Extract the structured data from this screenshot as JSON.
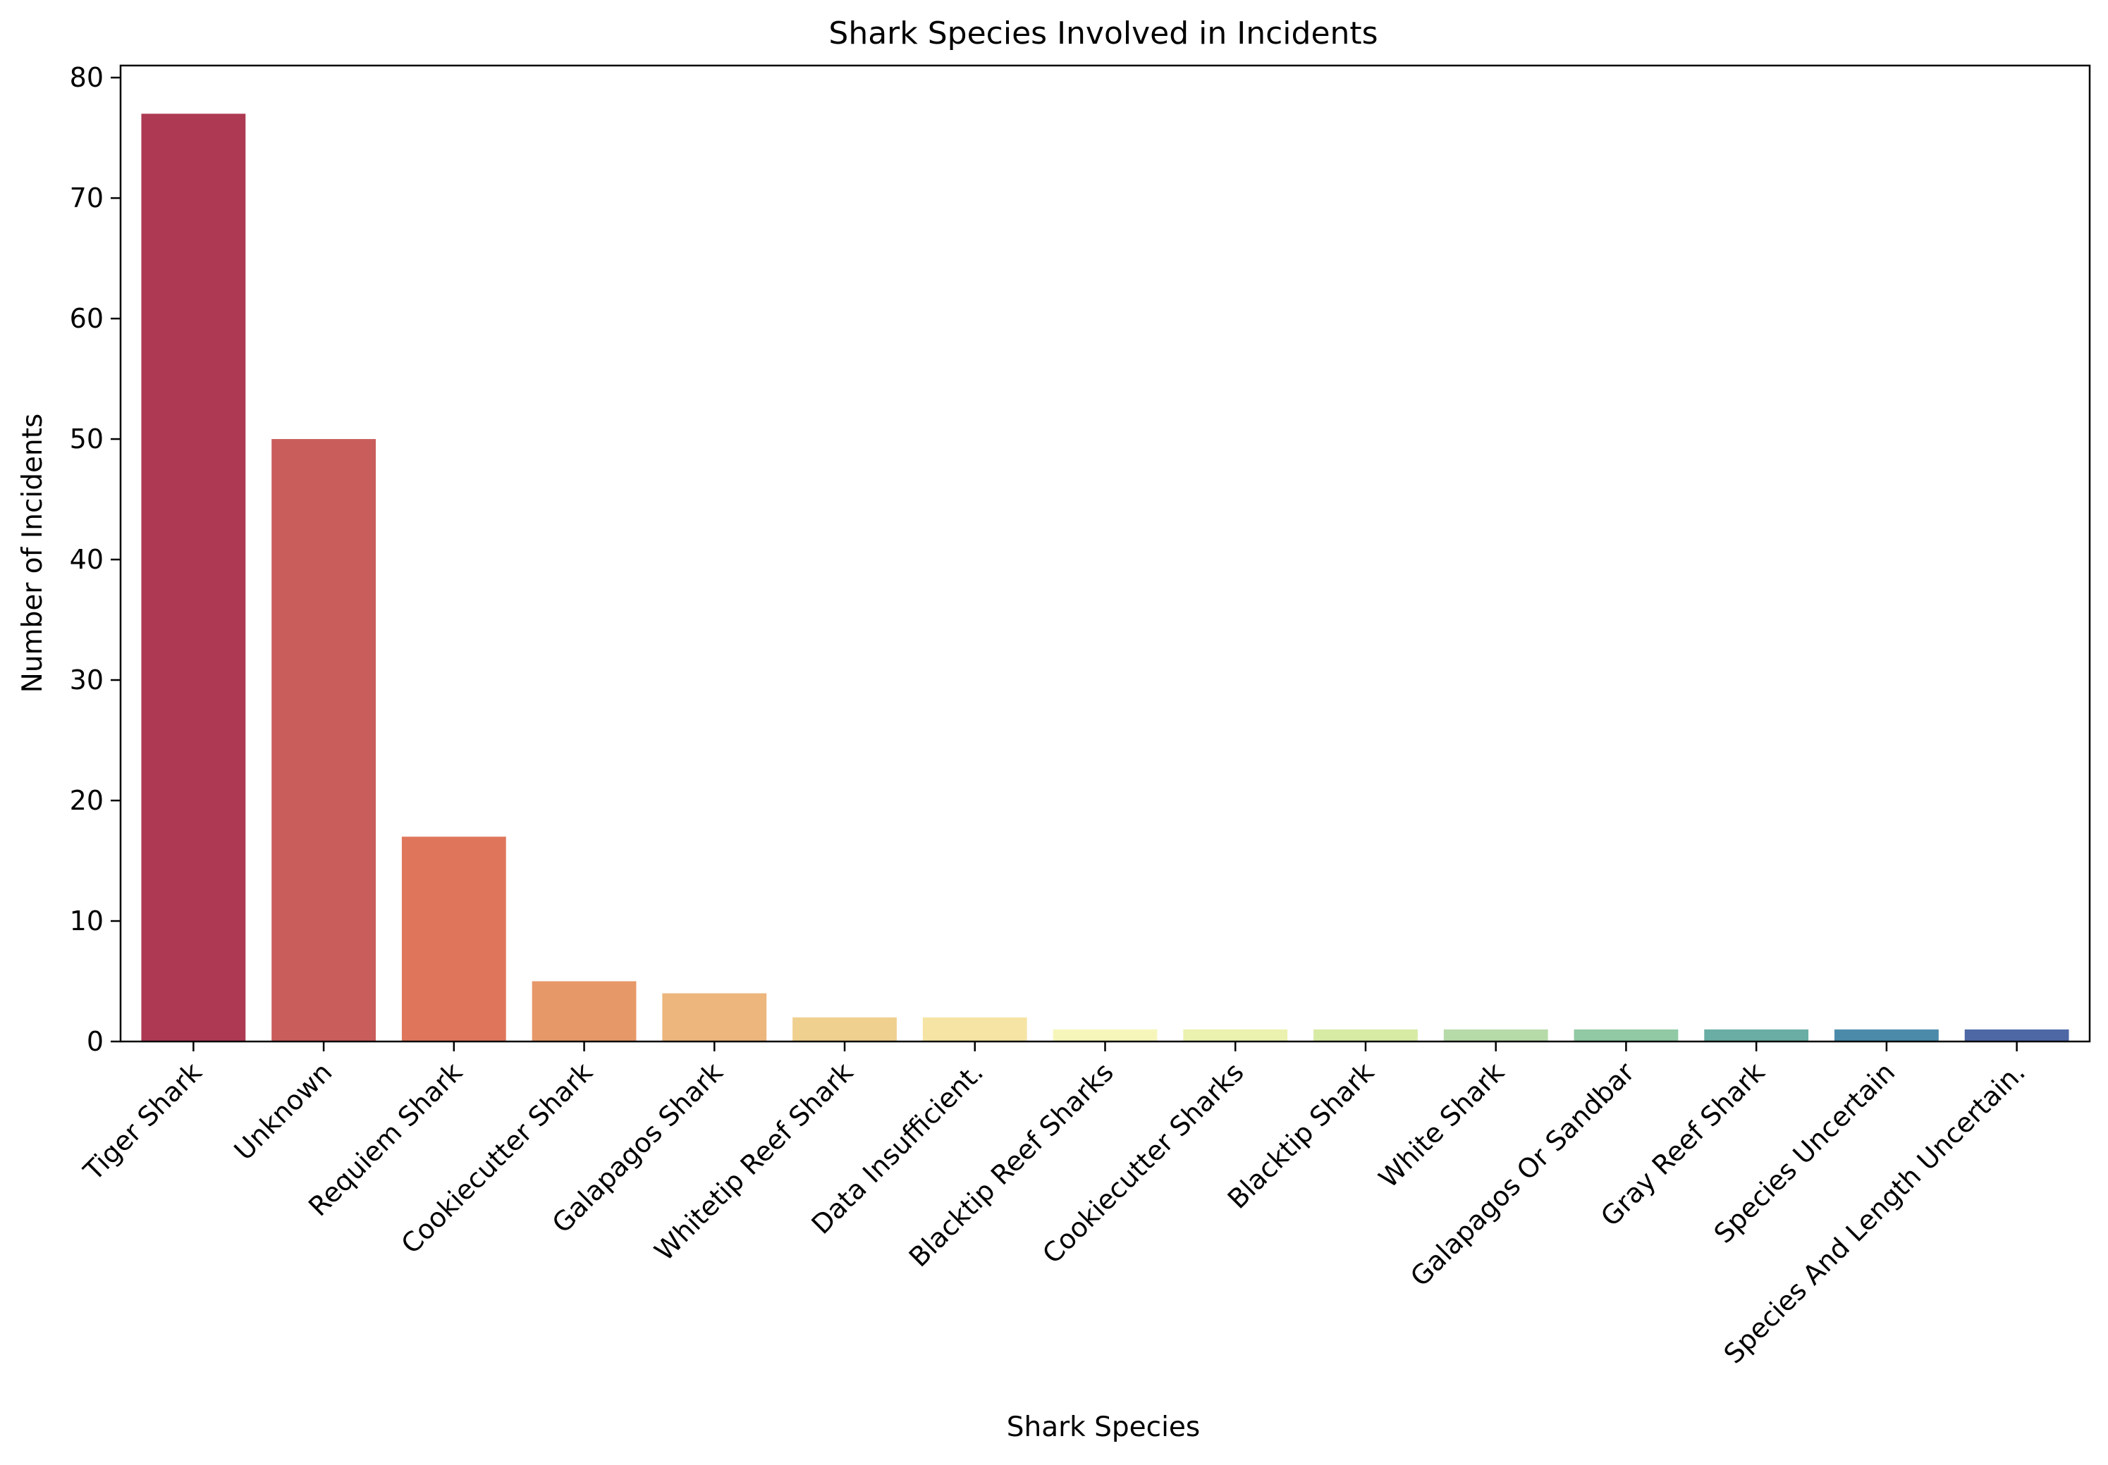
{
  "chart_data": {
    "type": "bar",
    "title": "Shark Species Involved in Incidents",
    "xlabel": "Shark Species",
    "ylabel": "Number of Incidents",
    "categories": [
      "Tiger Shark",
      "Unknown",
      "Requiem Shark",
      "Cookiecutter Shark",
      "Galapagos Shark",
      "Whitetip Reef Shark",
      "Data Insufficient.",
      "Blacktip Reef Sharks",
      "Cookiecutter Sharks",
      "Blacktip Shark",
      "White Shark",
      "Galapagos Or Sandbar",
      "Gray Reef Shark",
      "Species Uncertain",
      "Species And Length Uncertain."
    ],
    "values": [
      77,
      50,
      17,
      5,
      4,
      2,
      2,
      1,
      1,
      1,
      1,
      1,
      1,
      1,
      1
    ],
    "colors": [
      "#ad3953",
      "#c95d5c",
      "#df765b",
      "#e79869",
      "#ecb67c",
      "#f0d08f",
      "#f6e4a4",
      "#f6f6bb",
      "#ebf1ae",
      "#d7eba4",
      "#b6daa8",
      "#90c9a4",
      "#69ada4",
      "#4b8ba9",
      "#4d68a5"
    ],
    "ylim": [
      0,
      81
    ],
    "yticks": [
      0,
      10,
      20,
      30,
      40,
      50,
      60,
      70,
      80
    ],
    "grid": false,
    "legend": "none"
  }
}
